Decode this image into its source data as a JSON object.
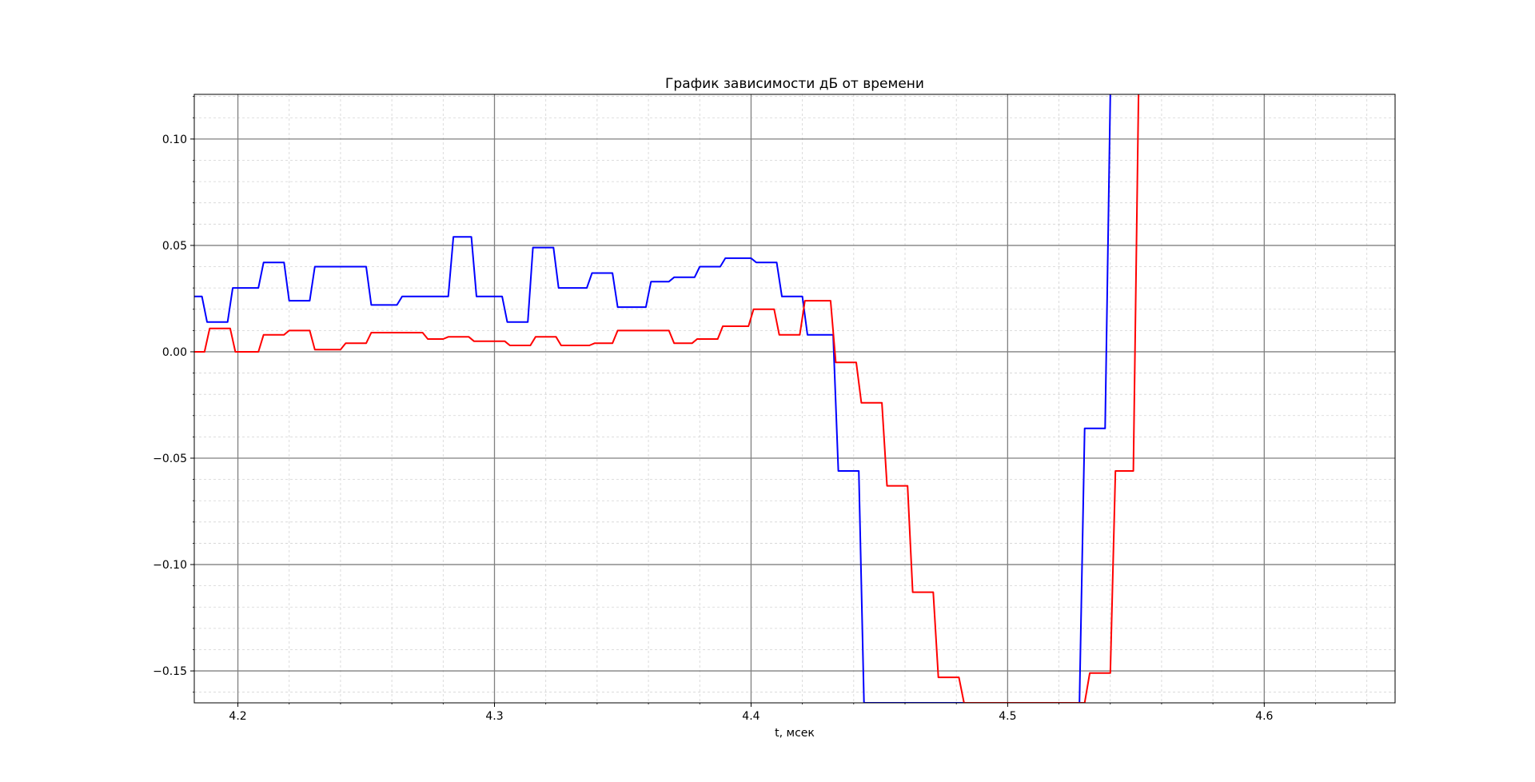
{
  "chart_data": {
    "type": "line",
    "title": "График зависимости дБ от времени",
    "xlabel": "t, мсек",
    "ylabel": "",
    "xlim": [
      4.183,
      4.651
    ],
    "ylim": [
      -0.165,
      0.121
    ],
    "xticks": [
      4.2,
      4.3,
      4.4,
      4.5,
      4.6
    ],
    "xtick_labels": [
      "4.2",
      "4.3",
      "4.4",
      "4.5",
      "4.6"
    ],
    "yticks": [
      0.1,
      0.05,
      0.0,
      -0.05,
      -0.1,
      -0.15
    ],
    "ytick_labels": [
      "0.10",
      "0.05",
      "0.00",
      "−0.05",
      "−0.10",
      "−0.15"
    ],
    "grid": {
      "major": true,
      "minor": true
    },
    "colors": {
      "series_1": "#0000ff",
      "series_2": "#ff0000",
      "major_grid": "#808080",
      "minor_grid": "#d3d3d3"
    },
    "series": [
      {
        "color": "#0000ff",
        "x": [
          4.183,
          4.186,
          4.188,
          4.196,
          4.198,
          4.208,
          4.21,
          4.218,
          4.22,
          4.228,
          4.23,
          4.25,
          4.252,
          4.262,
          4.264,
          4.282,
          4.284,
          4.291,
          4.293,
          4.303,
          4.305,
          4.313,
          4.315,
          4.323,
          4.325,
          4.336,
          4.338,
          4.346,
          4.348,
          4.359,
          4.361,
          4.368,
          4.37,
          4.378,
          4.38,
          4.388,
          4.39,
          4.4,
          4.402,
          4.41,
          4.412,
          4.42,
          4.422,
          4.432,
          4.434,
          4.442,
          4.444,
          4.528,
          4.53,
          4.538,
          4.54
        ],
        "y": [
          0.026,
          0.026,
          0.014,
          0.014,
          0.03,
          0.03,
          0.042,
          0.042,
          0.024,
          0.024,
          0.04,
          0.04,
          0.022,
          0.022,
          0.026,
          0.026,
          0.054,
          0.054,
          0.026,
          0.026,
          0.014,
          0.014,
          0.049,
          0.049,
          0.03,
          0.03,
          0.037,
          0.037,
          0.021,
          0.021,
          0.033,
          0.033,
          0.035,
          0.035,
          0.04,
          0.04,
          0.044,
          0.044,
          0.042,
          0.042,
          0.026,
          0.026,
          0.008,
          0.008,
          -0.056,
          -0.056,
          -0.165,
          -0.165,
          -0.036,
          -0.036,
          0.121
        ]
      },
      {
        "color": "#ff0000",
        "x": [
          4.183,
          4.187,
          4.189,
          4.197,
          4.199,
          4.208,
          4.21,
          4.218,
          4.22,
          4.228,
          4.23,
          4.24,
          4.242,
          4.25,
          4.252,
          4.272,
          4.274,
          4.28,
          4.282,
          4.29,
          4.292,
          4.304,
          4.306,
          4.314,
          4.316,
          4.324,
          4.326,
          4.337,
          4.339,
          4.346,
          4.348,
          4.368,
          4.37,
          4.377,
          4.379,
          4.387,
          4.389,
          4.399,
          4.401,
          4.409,
          4.411,
          4.419,
          4.421,
          4.431,
          4.433,
          4.441,
          4.443,
          4.451,
          4.453,
          4.461,
          4.463,
          4.471,
          4.473,
          4.481,
          4.483,
          4.53,
          4.532,
          4.54,
          4.542,
          4.549,
          4.551
        ],
        "y": [
          0.0,
          0.0,
          0.011,
          0.011,
          0.0,
          0.0,
          0.008,
          0.008,
          0.01,
          0.01,
          0.001,
          0.001,
          0.004,
          0.004,
          0.009,
          0.009,
          0.006,
          0.006,
          0.007,
          0.007,
          0.005,
          0.005,
          0.003,
          0.003,
          0.007,
          0.007,
          0.003,
          0.003,
          0.004,
          0.004,
          0.01,
          0.01,
          0.004,
          0.004,
          0.006,
          0.006,
          0.012,
          0.012,
          0.02,
          0.02,
          0.008,
          0.008,
          0.024,
          0.024,
          -0.005,
          -0.005,
          -0.024,
          -0.024,
          -0.063,
          -0.063,
          -0.113,
          -0.113,
          -0.153,
          -0.153,
          -0.165,
          -0.165,
          -0.151,
          -0.151,
          -0.056,
          -0.056,
          0.121
        ]
      }
    ]
  }
}
